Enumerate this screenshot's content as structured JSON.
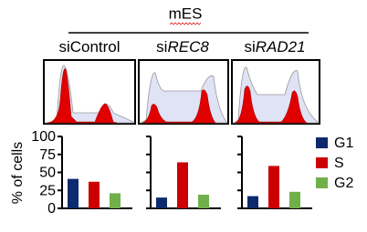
{
  "chart_data": {
    "type": "bar",
    "title": "mES",
    "ylabel": "% of cells",
    "categories": [
      {
        "prefix": "si",
        "name": "Control",
        "italic": false
      },
      {
        "prefix": "si",
        "name": "REC8",
        "italic": true
      },
      {
        "prefix": "si",
        "name": "RAD21",
        "italic": true
      }
    ],
    "series": [
      {
        "name": "G1",
        "color": "#0d2a6e",
        "values": [
          41,
          15,
          17
        ]
      },
      {
        "name": "S",
        "color": "#cc0000",
        "values": [
          37,
          64,
          59
        ]
      },
      {
        "name": "G2",
        "color": "#70b04a",
        "values": [
          21,
          19,
          23
        ]
      }
    ],
    "ylim": [
      0,
      100
    ],
    "yticks": [
      0,
      25,
      50,
      75,
      100
    ]
  }
}
